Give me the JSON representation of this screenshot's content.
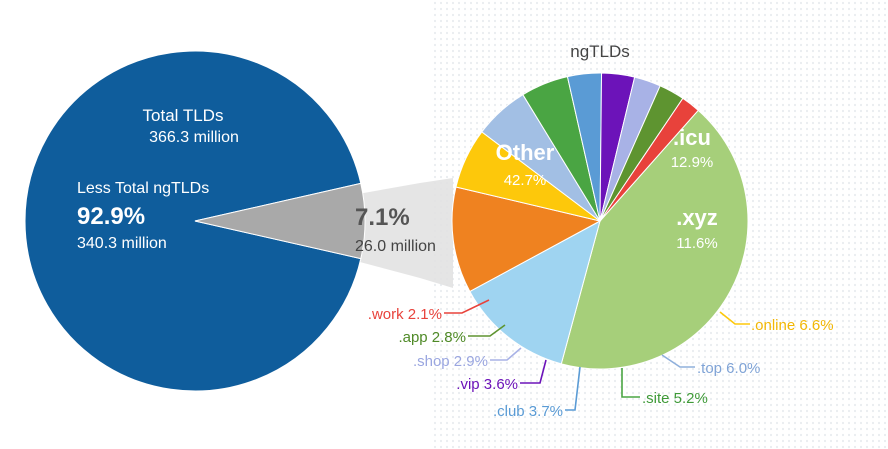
{
  "chart_data": [
    {
      "type": "pie",
      "slices": [
        {
          "label": "Less Total ngTLDs",
          "percent": 92.9,
          "value_text": "340.3 million",
          "color": "#0f5d9c"
        },
        {
          "label": "ngTLDs",
          "percent": 7.1,
          "value_text": "26.0 million",
          "color": "#a9a9a9"
        }
      ],
      "total": {
        "label": "Total TLDs",
        "value_text": "366.3 million"
      }
    },
    {
      "type": "pie",
      "title": "ngTLDs",
      "slices": [
        {
          "label": "Other",
          "percent": 42.7,
          "color": "#a6cf7a"
        },
        {
          "label": ".icu",
          "percent": 12.9,
          "color": "#9fd4f1"
        },
        {
          "label": ".xyz",
          "percent": 11.6,
          "color": "#ef8220"
        },
        {
          "label": ".online",
          "percent": 6.6,
          "color": "#fdc80b"
        },
        {
          "label": ".top",
          "percent": 6.0,
          "color": "#a2bfe4"
        },
        {
          "label": ".site",
          "percent": 5.2,
          "color": "#4aa543"
        },
        {
          "label": ".club",
          "percent": 3.7,
          "color": "#5a9bd5"
        },
        {
          "label": ".vip",
          "percent": 3.6,
          "color": "#6c13b9"
        },
        {
          "label": ".shop",
          "percent": 2.9,
          "color": "#a8b2e6"
        },
        {
          "label": ".app",
          "percent": 2.8,
          "color": "#5e9430"
        },
        {
          "label": ".work",
          "percent": 2.1,
          "color": "#e8423b"
        }
      ]
    }
  ],
  "text": {
    "total_title": "Total TLDs",
    "total_value": "366.3 million",
    "less_label": "Less Total ngTLDs",
    "less_pct": "92.9%",
    "less_value": "340.3 million",
    "ng_pct": "7.1%",
    "ng_value": "26.0 million",
    "ng_title": "ngTLDs",
    "other_label": "Other",
    "other_pct": "42.7%",
    "icu_label": ".icu",
    "icu_pct": "12.9%",
    "xyz_label": ".xyz",
    "xyz_pct": "11.6%",
    "online_label": ".online 6.6%",
    "top_label": ".top 6.0%",
    "site_label": ".site 5.2%",
    "club_label": ".club 3.7%",
    "vip_label": ".vip 3.6%",
    "shop_label": ".shop 2.9%",
    "app_label": ".app 2.8%",
    "work_label": ".work 2.1%"
  }
}
